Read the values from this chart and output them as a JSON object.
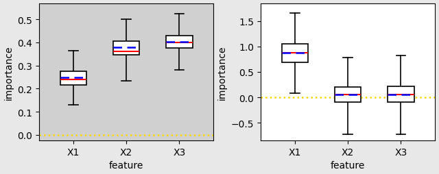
{
  "left": {
    "boxes": [
      {
        "q1": 0.215,
        "median": 0.24,
        "q3": 0.275,
        "whisker_low": 0.13,
        "whisker_high": 0.365,
        "mean": 0.248
      },
      {
        "q1": 0.345,
        "median": 0.36,
        "q3": 0.405,
        "whisker_low": 0.235,
        "whisker_high": 0.5,
        "mean": 0.378
      },
      {
        "q1": 0.375,
        "median": 0.4,
        "q3": 0.43,
        "whisker_low": 0.28,
        "whisker_high": 0.525,
        "mean": 0.403
      }
    ],
    "categories": [
      "X1",
      "X2",
      "X3"
    ],
    "xlabel": "feature",
    "ylabel": "importance",
    "hline_y": 0.0,
    "hline_color": "#FFD700",
    "median_color": "red",
    "mean_color": "blue",
    "ax_facecolor": "#d0d0d0",
    "ylim": [
      -0.025,
      0.57
    ],
    "yticks": [
      0.0,
      0.1,
      0.2,
      0.3,
      0.4,
      0.5
    ]
  },
  "right": {
    "boxes": [
      {
        "q1": 0.68,
        "median": 0.875,
        "q3": 1.05,
        "whisker_low": 0.08,
        "whisker_high": 1.65,
        "mean": 0.88
      },
      {
        "q1": -0.1,
        "median": 0.05,
        "q3": 0.2,
        "whisker_low": -0.72,
        "whisker_high": 0.78,
        "mean": 0.05
      },
      {
        "q1": -0.1,
        "median": 0.05,
        "q3": 0.22,
        "whisker_low": -0.72,
        "whisker_high": 0.82,
        "mean": 0.06
      }
    ],
    "categories": [
      "X1",
      "X2",
      "X3"
    ],
    "xlabel": "feature",
    "ylabel": "importance",
    "hline_y": 0.0,
    "hline_color": "#FFD700",
    "median_color": "red",
    "mean_color": "blue",
    "ax_facecolor": "#ffffff",
    "ylim": [
      -0.85,
      1.85
    ],
    "yticks": [
      -0.5,
      0.0,
      0.5,
      1.0,
      1.5
    ]
  },
  "fig_facecolor": "#e8e8e8",
  "box_width": 0.5,
  "linewidth": 1.2,
  "mean_linewidth": 1.8,
  "median_linewidth": 1.5
}
